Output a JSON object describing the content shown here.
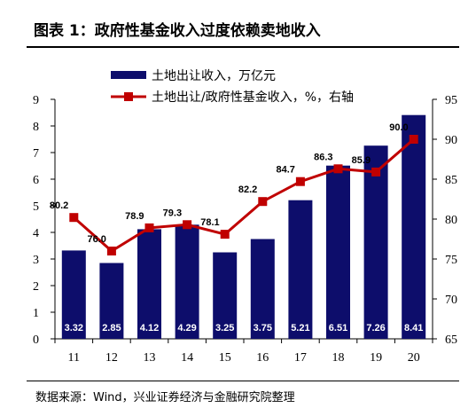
{
  "title": "图表 1：政府性基金收入过度依赖卖地收入",
  "source": "数据来源：Wind，兴业证券经济与金融研究院整理",
  "chart_data": {
    "type": "bar",
    "categories": [
      "11",
      "12",
      "13",
      "14",
      "15",
      "16",
      "17",
      "18",
      "19",
      "20"
    ],
    "series": [
      {
        "name": "土地出让收入，万亿元",
        "kind": "bar",
        "axis": "left",
        "color": "#0d0d6b",
        "values": [
          3.32,
          2.85,
          4.12,
          4.29,
          3.25,
          3.75,
          5.21,
          6.51,
          7.26,
          8.41
        ],
        "labels": [
          "3.32",
          "2.85",
          "4.12",
          "4.29",
          "3.25",
          "3.75",
          "5.21",
          "6.51",
          "7.26",
          "8.41"
        ]
      },
      {
        "name": "土地出让/政府性基金收入，%，右轴",
        "kind": "line",
        "axis": "right",
        "color": "#c00000",
        "values": [
          80.2,
          76.0,
          78.9,
          79.3,
          78.1,
          82.2,
          84.7,
          86.3,
          85.9,
          90.0
        ],
        "labels": [
          "80.2",
          "76.0",
          "78.9",
          "79.3",
          "78.1",
          "82.2",
          "84.7",
          "86.3",
          "85.9",
          "90.0"
        ]
      }
    ],
    "y_left": {
      "min": 0,
      "max": 9,
      "ticks": [
        "0",
        "1",
        "2",
        "3",
        "4",
        "5",
        "6",
        "7",
        "8",
        "9"
      ]
    },
    "y_right": {
      "min": 65,
      "max": 95,
      "ticks": [
        "65",
        "70",
        "75",
        "80",
        "85",
        "90",
        "95"
      ]
    },
    "grid": false,
    "legend": "top-left"
  }
}
